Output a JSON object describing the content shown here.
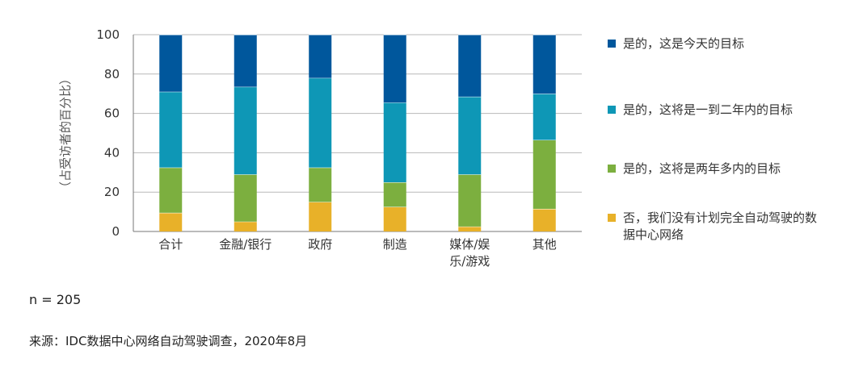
{
  "chart_data": {
    "type": "bar",
    "stacked": true,
    "ylabel": "（占受访者的百分比）",
    "ylim": [
      0,
      100
    ],
    "yticks": [
      0,
      20,
      40,
      60,
      80,
      100
    ],
    "grid": true,
    "legend_position": "right",
    "categories": [
      [
        "合计"
      ],
      [
        "金融/银行"
      ],
      [
        "政府"
      ],
      [
        "制造"
      ],
      [
        "媒体/娱",
        "乐/游戏"
      ],
      [
        "其他"
      ]
    ],
    "series": [
      {
        "name": "否，我们没有计划完全自动驾驶的数据中心网络",
        "color": "#E8B129",
        "values": [
          9.5,
          5,
          15,
          12.5,
          2.5,
          11.5
        ]
      },
      {
        "name": "是的，这将是两年多内的目标",
        "color": "#7CAF3F",
        "values": [
          23,
          24,
          17.5,
          12.5,
          26.5,
          35
        ]
      },
      {
        "name": "是的，这将是一到二年内的目标",
        "color": "#0E97B6",
        "values": [
          38.5,
          44.5,
          45.5,
          40.5,
          39.5,
          23.5
        ]
      },
      {
        "name": "是的，这是今天的目标",
        "color": "#00579C",
        "values": [
          29,
          26.5,
          22,
          34.5,
          31.5,
          30
        ]
      }
    ]
  },
  "legend": [
    {
      "label": "是的，这是今天的目标",
      "color": "#00579C"
    },
    {
      "label": "是的，这将是一到二年内的目标",
      "color": "#0E97B6"
    },
    {
      "label": "是的，这将是两年多内的目标",
      "color": "#7CAF3F"
    },
    {
      "label": "否，我们没有计划完全自动驾驶的数据中心网络",
      "color": "#E8B129"
    }
  ],
  "footnote": "n = 205",
  "source": "来源：IDC数据中心网络自动驾驶调查，2020年8月"
}
